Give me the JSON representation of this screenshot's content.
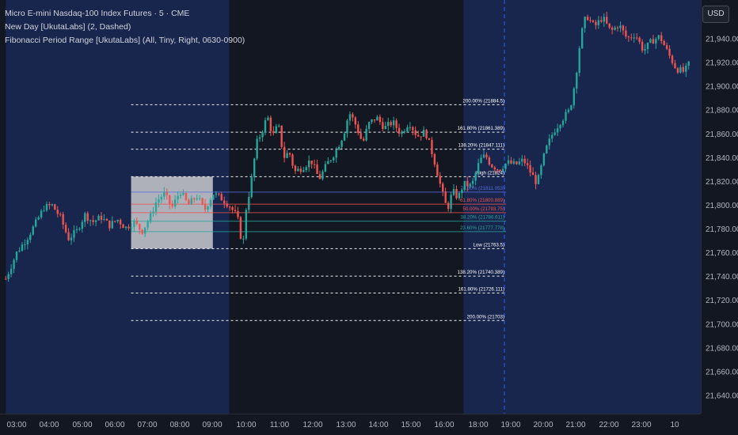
{
  "legend": {
    "symbol": "Micro E-mini Nasdaq-100 Index Futures · 5 · CME",
    "indicator1": "New Day [UkutaLabs] (2, Dashed)",
    "indicator2": "Fibonacci Period Range [UkutaLabs] (All, Tiny, Right, 0630-0900)"
  },
  "currency_button": "USD",
  "colors": {
    "background": "#131722",
    "session_shade": "#18254d",
    "up": "#26a69a",
    "down": "#ef5350",
    "range_box": "#d9d9d9",
    "day_line": "#2962ff"
  },
  "chart_data": {
    "type": "candlestick",
    "x_ticks": [
      "03:00",
      "04:00",
      "05:00",
      "06:00",
      "07:00",
      "08:00",
      "09:00",
      "10:00",
      "11:00",
      "12:00",
      "13:00",
      "14:00",
      "15:00",
      "16:00",
      "18:00",
      "19:00",
      "20:00",
      "21:00",
      "22:00",
      "23:00",
      "10"
    ],
    "y_ticks": [
      "21,640.00",
      "21,660.00",
      "21,680.00",
      "21,700.00",
      "21,720.00",
      "21,740.00",
      "21,760.00",
      "21,780.00",
      "21,800.00",
      "21,820.00",
      "21,840.00",
      "21,860.00",
      "21,880.00",
      "21,900.00",
      "21,920.00",
      "21,940.00"
    ],
    "ylim": [
      21625,
      21970
    ],
    "close_path": [
      {
        "t": "02:40",
        "p": 21738
      },
      {
        "t": "03:00",
        "p": 21760
      },
      {
        "t": "03:20",
        "p": 21773
      },
      {
        "t": "03:35",
        "p": 21785
      },
      {
        "t": "03:50",
        "p": 21798
      },
      {
        "t": "04:05",
        "p": 21800
      },
      {
        "t": "04:20",
        "p": 21790
      },
      {
        "t": "04:35",
        "p": 21772
      },
      {
        "t": "04:50",
        "p": 21778
      },
      {
        "t": "05:05",
        "p": 21792
      },
      {
        "t": "05:20",
        "p": 21786
      },
      {
        "t": "05:35",
        "p": 21790
      },
      {
        "t": "05:50",
        "p": 21783
      },
      {
        "t": "06:05",
        "p": 21788
      },
      {
        "t": "06:20",
        "p": 21781
      },
      {
        "t": "06:35",
        "p": 21786
      },
      {
        "t": "06:50",
        "p": 21778
      },
      {
        "t": "07:05",
        "p": 21790
      },
      {
        "t": "07:15",
        "p": 21802
      },
      {
        "t": "07:30",
        "p": 21810
      },
      {
        "t": "07:45",
        "p": 21798
      },
      {
        "t": "08:00",
        "p": 21812
      },
      {
        "t": "08:15",
        "p": 21800
      },
      {
        "t": "08:30",
        "p": 21808
      },
      {
        "t": "08:45",
        "p": 21796
      },
      {
        "t": "09:00",
        "p": 21810
      },
      {
        "t": "09:15",
        "p": 21806
      },
      {
        "t": "09:30",
        "p": 21800
      },
      {
        "t": "09:45",
        "p": 21790
      },
      {
        "t": "09:55",
        "p": 21764
      },
      {
        "t": "10:00",
        "p": 21795
      },
      {
        "t": "10:10",
        "p": 21818
      },
      {
        "t": "10:20",
        "p": 21852
      },
      {
        "t": "10:30",
        "p": 21862
      },
      {
        "t": "10:40",
        "p": 21875
      },
      {
        "t": "10:50",
        "p": 21858
      },
      {
        "t": "11:00",
        "p": 21868
      },
      {
        "t": "11:10",
        "p": 21840
      },
      {
        "t": "11:20",
        "p": 21845
      },
      {
        "t": "11:30",
        "p": 21828
      },
      {
        "t": "11:45",
        "p": 21832
      },
      {
        "t": "12:00",
        "p": 21838
      },
      {
        "t": "12:15",
        "p": 21822
      },
      {
        "t": "12:30",
        "p": 21835
      },
      {
        "t": "12:45",
        "p": 21845
      },
      {
        "t": "13:00",
        "p": 21860
      },
      {
        "t": "13:10",
        "p": 21878
      },
      {
        "t": "13:20",
        "p": 21870
      },
      {
        "t": "13:35",
        "p": 21852
      },
      {
        "t": "13:45",
        "p": 21868
      },
      {
        "t": "14:00",
        "p": 21874
      },
      {
        "t": "14:15",
        "p": 21865
      },
      {
        "t": "14:30",
        "p": 21870
      },
      {
        "t": "14:45",
        "p": 21860
      },
      {
        "t": "15:00",
        "p": 21870
      },
      {
        "t": "15:15",
        "p": 21858
      },
      {
        "t": "15:30",
        "p": 21862
      },
      {
        "t": "15:45",
        "p": 21840
      },
      {
        "t": "16:00",
        "p": 21812
      },
      {
        "t": "16:10",
        "p": 21796
      },
      {
        "t": "16:20",
        "p": 21812
      },
      {
        "t": "16:30",
        "p": 21806
      },
      {
        "t": "16:40",
        "p": 21818
      },
      {
        "t": "16:55",
        "p": 21816
      },
      {
        "t": "17:00",
        "p": 21824
      },
      {
        "t": "17:10",
        "p": 21838
      },
      {
        "t": "17:20",
        "p": 21842
      },
      {
        "t": "17:30",
        "p": 21834
      },
      {
        "t": "17:45",
        "p": 21830
      },
      {
        "t": "18:00",
        "p": 21836
      },
      {
        "t": "18:15",
        "p": 21834
      },
      {
        "t": "18:30",
        "p": 21838
      },
      {
        "t": "18:45",
        "p": 21826
      },
      {
        "t": "18:55",
        "p": 21818
      },
      {
        "t": "19:10",
        "p": 21846
      },
      {
        "t": "19:25",
        "p": 21862
      },
      {
        "t": "19:40",
        "p": 21872
      },
      {
        "t": "19:55",
        "p": 21880
      },
      {
        "t": "20:05",
        "p": 21905
      },
      {
        "t": "20:15",
        "p": 21942
      },
      {
        "t": "20:25",
        "p": 21960
      },
      {
        "t": "20:40",
        "p": 21950
      },
      {
        "t": "20:55",
        "p": 21958
      },
      {
        "t": "21:10",
        "p": 21946
      },
      {
        "t": "21:25",
        "p": 21952
      },
      {
        "t": "21:40",
        "p": 21940
      },
      {
        "t": "21:55",
        "p": 21944
      },
      {
        "t": "22:10",
        "p": 21930
      },
      {
        "t": "22:25",
        "p": 21938
      },
      {
        "t": "22:40",
        "p": 21942
      },
      {
        "t": "22:55",
        "p": 21928
      },
      {
        "t": "23:10",
        "p": 21915
      },
      {
        "t": "23:25",
        "p": 21912
      },
      {
        "t": "23:35",
        "p": 21920
      }
    ],
    "range_box": {
      "start": "06:30",
      "end": "09:00",
      "high": 21824,
      "low": 21763.5
    },
    "fib_levels": [
      {
        "label": "200.00% (21884.5)",
        "price": 21884.5,
        "style": "dashed",
        "color": "#ffffff"
      },
      {
        "label": "161.80% (21861.389)",
        "price": 21861.389,
        "style": "dashed",
        "color": "#ffffff"
      },
      {
        "label": "138.20% (21847.111)",
        "price": 21847.111,
        "style": "dashed",
        "color": "#ffffff"
      },
      {
        "label": "High (21824)",
        "price": 21824,
        "style": "dashed",
        "color": "#ffffff"
      },
      {
        "label": "78.60% (21811.053)",
        "price": 21811.053,
        "style": "solid",
        "color": "#5b6ee1"
      },
      {
        "label": "61.80% (21800.889)",
        "price": 21800.889,
        "style": "solid",
        "color": "#ef5350"
      },
      {
        "label": "50.00% (21793.75)",
        "price": 21793.75,
        "style": "solid",
        "color": "#ef5350"
      },
      {
        "label": "38.20% (21786.611)",
        "price": 21786.611,
        "style": "solid",
        "color": "#26a69a"
      },
      {
        "label": "23.60% (21777.778)",
        "price": 21777.778,
        "style": "solid",
        "color": "#26a69a"
      },
      {
        "label": "Low (21763.5)",
        "price": 21763.5,
        "style": "dashed",
        "color": "#ffffff"
      },
      {
        "label": "138.20% (21740.389)",
        "price": 21740.389,
        "style": "dashed",
        "color": "#ffffff"
      },
      {
        "label": "161.80% (21726.111)",
        "price": 21726.111,
        "style": "dashed",
        "color": "#ffffff"
      },
      {
        "label": "200.00% (21703)",
        "price": 21703,
        "style": "dashed",
        "color": "#ffffff"
      }
    ],
    "fib_line_start": "06:30",
    "new_day_line": "17:55",
    "shaded_sessions": [
      [
        "02:40",
        "09:30"
      ],
      [
        "16:40",
        "23:55"
      ]
    ],
    "grid": false
  }
}
